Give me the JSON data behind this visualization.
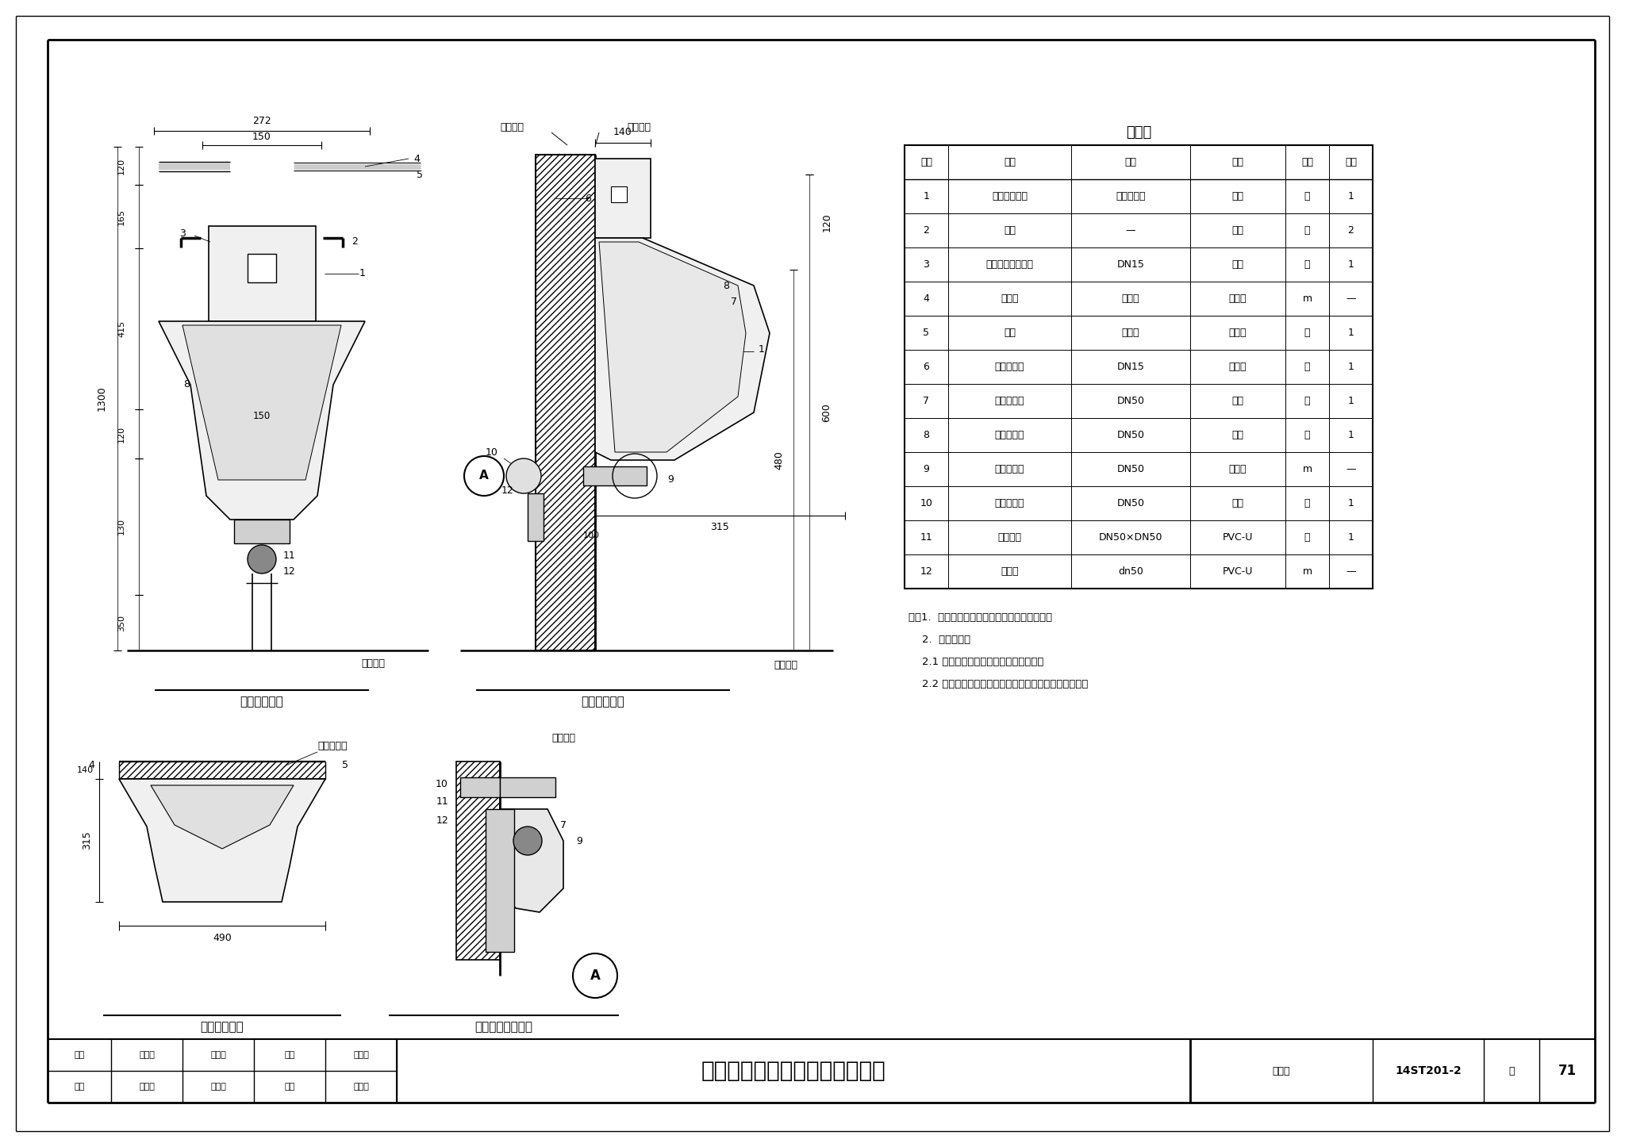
{
  "title": "自动感应一体壁挂式小便器安装",
  "drawing_number": "14ST201-2",
  "page": "71",
  "bg_color": "#ffffff",
  "table_title": "材料表",
  "table_headers": [
    "编号",
    "名称",
    "规格",
    "材料",
    "单位",
    "数量"
  ],
  "table_col_widths": [
    55,
    155,
    150,
    120,
    55,
    55
  ],
  "table_rows": [
    [
      "1",
      "壁挂式小便器",
      "感应一体型",
      "陶瓷",
      "个",
      "1"
    ],
    [
      "2",
      "挂钩",
      "—",
      "配套",
      "个",
      "2"
    ],
    [
      "3",
      "内藏式感应冲水器",
      "DN15",
      "配套",
      "套",
      "1"
    ],
    [
      "4",
      "冷水管",
      "按设计",
      "按设计",
      "m",
      "—"
    ],
    [
      "5",
      "三通",
      "按设计",
      "按设计",
      "个",
      "1"
    ],
    [
      "6",
      "内螺纹弯头",
      "DN15",
      "按设计",
      "个",
      "1"
    ],
    [
      "7",
      "橡胶密封圈",
      "DN50",
      "橡胶",
      "个",
      "1"
    ],
    [
      "8",
      "排水法兰盘",
      "DN50",
      "配套",
      "个",
      "1"
    ],
    [
      "9",
      "外螺纹短管",
      "DN50",
      "金属管",
      "m",
      "—"
    ],
    [
      "10",
      "内螺纹弯头",
      "DN50",
      "金属",
      "个",
      "1"
    ],
    [
      "11",
      "转换接头",
      "DN50×DN50",
      "PVC-U",
      "个",
      "1"
    ],
    [
      "12",
      "排水管",
      "dn50",
      "PVC-U",
      "m",
      "—"
    ]
  ],
  "notes": [
    "注：1.  小便器背部靠墙处周边用防霉硅胶密封。",
    "    2.  安装步骤：",
    "    2.1 将橡胶密封圈套在小便器排水口上。",
    "    2.2 将小便器对准法兰盘和固定螺栓后，安装在挂钩上。"
  ],
  "elevation_title": "小便器立面图",
  "side_title": "小便器侧视图",
  "plan_title": "小便器平面图",
  "drain_title": "小便器排水接口图"
}
